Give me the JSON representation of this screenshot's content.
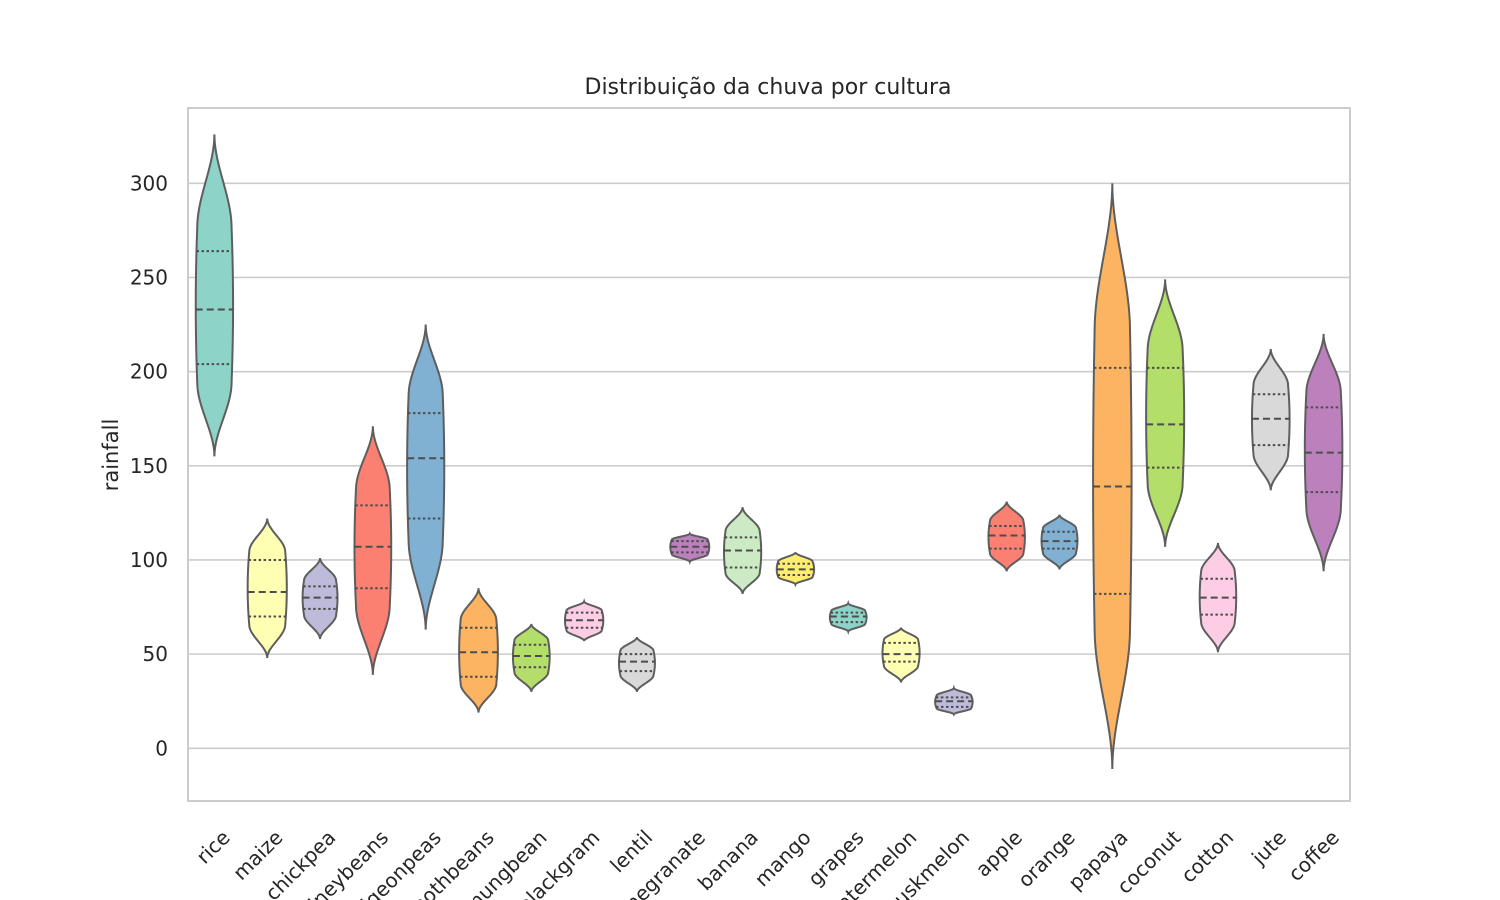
{
  "chart_data": {
    "type": "violin",
    "title": "Distribuição da chuva por cultura",
    "xlabel": "",
    "ylabel": "rainfall",
    "ylim": [
      -28,
      340
    ],
    "yticks": [
      0,
      50,
      100,
      150,
      200,
      250,
      300
    ],
    "grid": true,
    "categories": [
      "rice",
      "maize",
      "chickpea",
      "kidneybeans",
      "pigeonpeas",
      "mothbeans",
      "mungbean",
      "blackgram",
      "lentil",
      "pomegranate",
      "banana",
      "mango",
      "grapes",
      "watermelon",
      "muskmelon",
      "apple",
      "orange",
      "papaya",
      "coconut",
      "cotton",
      "jute",
      "coffee"
    ],
    "series": [
      {
        "category": "rice",
        "min": 155,
        "q1": 204,
        "median": 233,
        "q3": 264,
        "max": 326,
        "color": "#8dd3c7"
      },
      {
        "category": "maize",
        "min": 48,
        "q1": 70,
        "median": 83,
        "q3": 100,
        "max": 122,
        "color": "#ffffb3"
      },
      {
        "category": "chickpea",
        "min": 58,
        "q1": 74,
        "median": 80,
        "q3": 86,
        "max": 101,
        "color": "#bebada"
      },
      {
        "category": "kidneybeans",
        "min": 39,
        "q1": 85,
        "median": 107,
        "q3": 129,
        "max": 171,
        "color": "#fb8072"
      },
      {
        "category": "pigeonpeas",
        "min": 63,
        "q1": 122,
        "median": 154,
        "q3": 178,
        "max": 225,
        "color": "#80b1d3"
      },
      {
        "category": "mothbeans",
        "min": 19,
        "q1": 38,
        "median": 51,
        "q3": 64,
        "max": 85,
        "color": "#fdb462"
      },
      {
        "category": "mungbean",
        "min": 30,
        "q1": 43,
        "median": 49,
        "q3": 55,
        "max": 66,
        "color": "#b3de69"
      },
      {
        "category": "blackgram",
        "min": 57,
        "q1": 64,
        "median": 68,
        "q3": 72,
        "max": 78,
        "color": "#fccde5"
      },
      {
        "category": "lentil",
        "min": 30,
        "q1": 41,
        "median": 46,
        "q3": 50,
        "max": 59,
        "color": "#d9d9d9"
      },
      {
        "category": "pomegranate",
        "min": 99,
        "q1": 104,
        "median": 107,
        "q3": 110,
        "max": 114,
        "color": "#bc80bd"
      },
      {
        "category": "banana",
        "min": 82,
        "q1": 96,
        "median": 105,
        "q3": 112,
        "max": 128,
        "color": "#ccebc5"
      },
      {
        "category": "mango",
        "min": 87,
        "q1": 92,
        "median": 95,
        "q3": 98,
        "max": 104,
        "color": "#ffed6f"
      },
      {
        "category": "grapes",
        "min": 62,
        "q1": 67,
        "median": 70,
        "q3": 72,
        "max": 77,
        "color": "#8dd3c7"
      },
      {
        "category": "watermelon",
        "min": 35,
        "q1": 46,
        "median": 50,
        "q3": 56,
        "max": 64,
        "color": "#ffffb3"
      },
      {
        "category": "muskmelon",
        "min": 18,
        "q1": 22,
        "median": 25,
        "q3": 27,
        "max": 32,
        "color": "#bebada"
      },
      {
        "category": "apple",
        "min": 94,
        "q1": 106,
        "median": 113,
        "q3": 118,
        "max": 131,
        "color": "#fb8072"
      },
      {
        "category": "orange",
        "min": 95,
        "q1": 106,
        "median": 110,
        "q3": 115,
        "max": 124,
        "color": "#80b1d3"
      },
      {
        "category": "papaya",
        "min": -11,
        "q1": 82,
        "median": 139,
        "q3": 202,
        "max": 300,
        "color": "#fdb462"
      },
      {
        "category": "coconut",
        "min": 107,
        "q1": 149,
        "median": 172,
        "q3": 202,
        "max": 249,
        "color": "#b3de69"
      },
      {
        "category": "cotton",
        "min": 51,
        "q1": 71,
        "median": 80,
        "q3": 90,
        "max": 109,
        "color": "#fccde5"
      },
      {
        "category": "jute",
        "min": 137,
        "q1": 161,
        "median": 175,
        "q3": 188,
        "max": 212,
        "color": "#d9d9d9"
      },
      {
        "category": "coffee",
        "min": 94,
        "q1": 136,
        "median": 157,
        "q3": 181,
        "max": 220,
        "color": "#bc80bd"
      }
    ]
  }
}
